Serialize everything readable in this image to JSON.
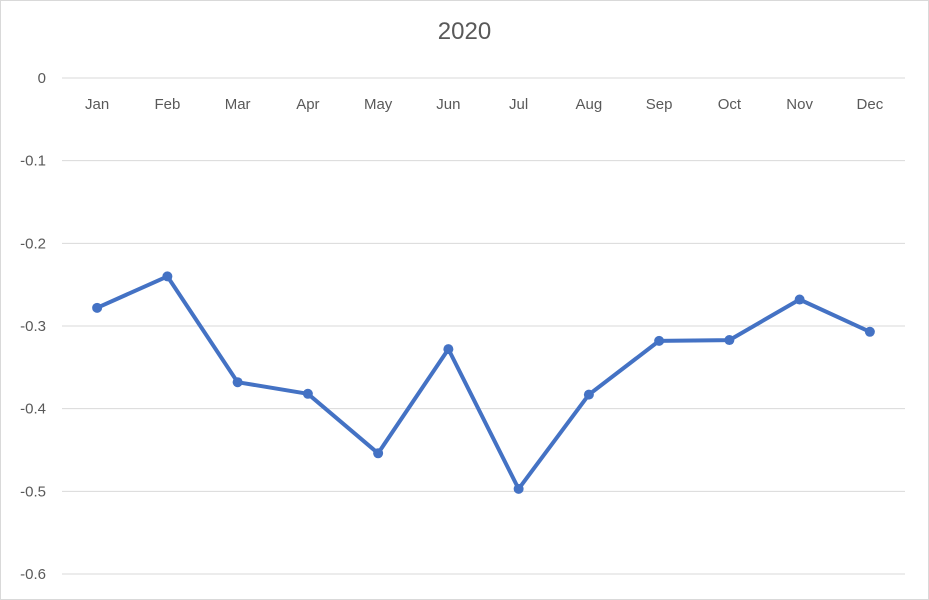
{
  "chart_data": {
    "type": "line",
    "title": "2020",
    "categories": [
      "Jan",
      "Feb",
      "Mar",
      "Apr",
      "May",
      "Jun",
      "Jul",
      "Aug",
      "Sep",
      "Oct",
      "Nov",
      "Dec"
    ],
    "series": [
      {
        "values": [
          -0.278,
          -0.24,
          -0.368,
          -0.382,
          -0.454,
          -0.328,
          -0.497,
          -0.383,
          -0.318,
          -0.317,
          -0.268,
          -0.307
        ]
      }
    ],
    "ylim": [
      -0.6,
      0
    ],
    "yticks": [
      0,
      -0.1,
      -0.2,
      -0.3,
      -0.4,
      -0.5,
      -0.6
    ],
    "ytick_labels": [
      "0",
      "-0.1",
      "-0.2",
      "-0.3",
      "-0.4",
      "-0.5",
      "-0.6"
    ],
    "grid": true,
    "x_axis_position": "top",
    "colors": {
      "line": "#4472c4",
      "grid": "#d9d9d9",
      "text": "#595959"
    }
  }
}
